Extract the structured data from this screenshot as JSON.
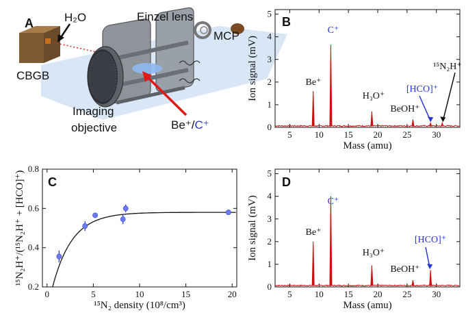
{
  "panels": {
    "a": {
      "label": "A",
      "texts": {
        "h2o": "H₂O",
        "einzel": "Einzel lens",
        "mcp": "MCP",
        "cbgb": "CBGB",
        "imaging1": "Imaging",
        "imaging2": "objective",
        "be": "Be⁺/",
        "c": "C⁺"
      }
    },
    "b": {
      "label": "B"
    },
    "c": {
      "label": "C"
    },
    "d": {
      "label": "D"
    }
  },
  "colors": {
    "signal": "#cc1111",
    "blue": "#2a35d8",
    "fitpoint": "#6f7cf0"
  },
  "chart_data": [
    {
      "panel": "B",
      "type": "line",
      "xlabel": "Mass (amu)",
      "ylabel": "Ion signal (mV)",
      "xlim": [
        2.5,
        34
      ],
      "ylim": [
        0,
        5.2
      ],
      "xticks": [
        5,
        10,
        15,
        20,
        25,
        30
      ],
      "yticks": [
        0,
        1,
        2,
        3,
        4,
        5
      ],
      "peaks": [
        {
          "mass": 9.0,
          "height": 1.6,
          "label": "Be⁺",
          "color": "black"
        },
        {
          "mass": 12.0,
          "height": 3.65,
          "label": "C⁺",
          "color": "blue"
        },
        {
          "mass": 19.0,
          "height": 0.7,
          "label": "H₃O⁺",
          "color": "black"
        },
        {
          "mass": 26.0,
          "height": 0.35,
          "label": "BeOH⁺",
          "color": "black"
        },
        {
          "mass": 29.0,
          "height": 0.2,
          "label": "[HCO]⁺",
          "color": "blue"
        },
        {
          "mass": 31.0,
          "height": 0.2,
          "label": "¹⁵N₂H⁺",
          "color": "black"
        }
      ]
    },
    {
      "panel": "C",
      "type": "scatter",
      "xlabel": "¹⁵N₂ density (10⁸/cm³)",
      "ylabel": "¹⁵N₂H⁺/(¹⁵N₂H⁺ + [HCO]⁺)",
      "xlim": [
        -0.5,
        20.5
      ],
      "ylim": [
        0.2,
        0.8
      ],
      "xticks": [
        0,
        5,
        10,
        15,
        20
      ],
      "yticks": [
        0.2,
        0.4,
        0.6,
        0.8
      ],
      "points": [
        {
          "x": 1.3,
          "y": 0.355,
          "err": 0.03
        },
        {
          "x": 4.1,
          "y": 0.51,
          "err": 0.025
        },
        {
          "x": 5.2,
          "y": 0.565,
          "err": 0.01
        },
        {
          "x": 8.2,
          "y": 0.545,
          "err": 0.025
        },
        {
          "x": 8.5,
          "y": 0.6,
          "err": 0.02
        },
        {
          "x": 19.6,
          "y": 0.58,
          "err": 0.012
        }
      ],
      "fit": {
        "asymptote": 0.58,
        "x0": 0.6,
        "rate": 0.47
      }
    },
    {
      "panel": "D",
      "type": "line",
      "xlabel": "Mass (amu)",
      "ylabel": "Ion signal (mV)",
      "xlim": [
        2.5,
        34
      ],
      "ylim": [
        0,
        5.2
      ],
      "xticks": [
        5,
        10,
        15,
        20,
        25,
        30
      ],
      "yticks": [
        0,
        1,
        2,
        3,
        4,
        5
      ],
      "peaks": [
        {
          "mass": 9.0,
          "height": 2.0,
          "label": "Be⁺",
          "color": "black"
        },
        {
          "mass": 12.0,
          "height": 4.0,
          "label": "C⁺",
          "color": "blue"
        },
        {
          "mass": 19.0,
          "height": 0.95,
          "label": "H₃O⁺",
          "color": "black"
        },
        {
          "mass": 26.0,
          "height": 0.3,
          "label": "BeOH⁺",
          "color": "black"
        },
        {
          "mass": 29.0,
          "height": 0.75,
          "label": "[HCO]⁺",
          "color": "blue"
        }
      ]
    }
  ]
}
